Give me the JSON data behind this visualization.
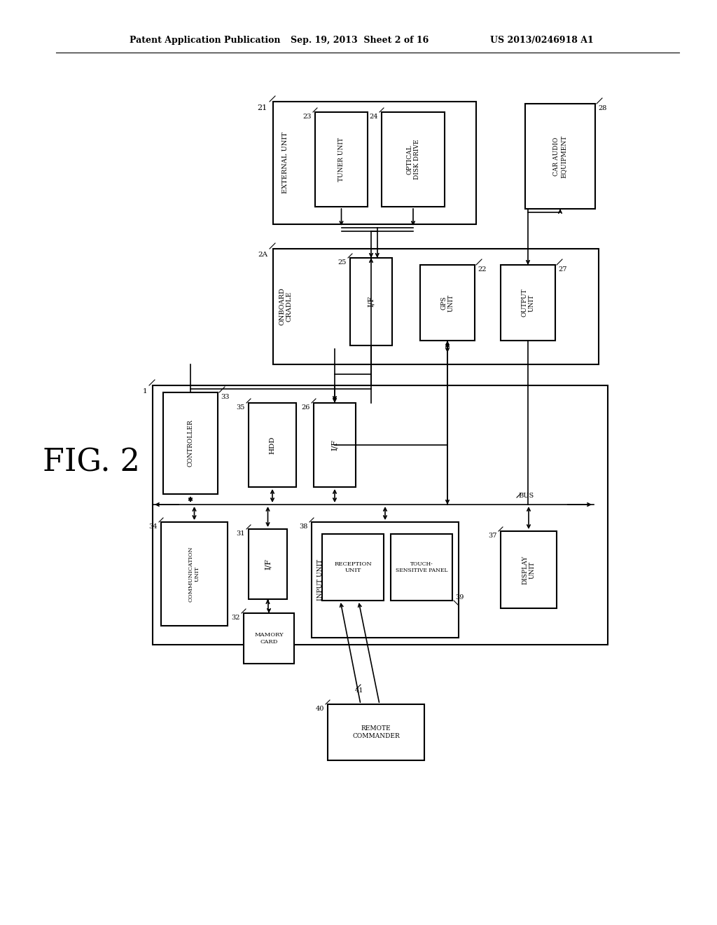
{
  "bg_color": "#ffffff",
  "header_left": "Patent Application Publication",
  "header_center": "Sep. 19, 2013  Sheet 2 of 16",
  "header_right": "US 2013/0246918 A1",
  "fig_label": "FIG. 2"
}
